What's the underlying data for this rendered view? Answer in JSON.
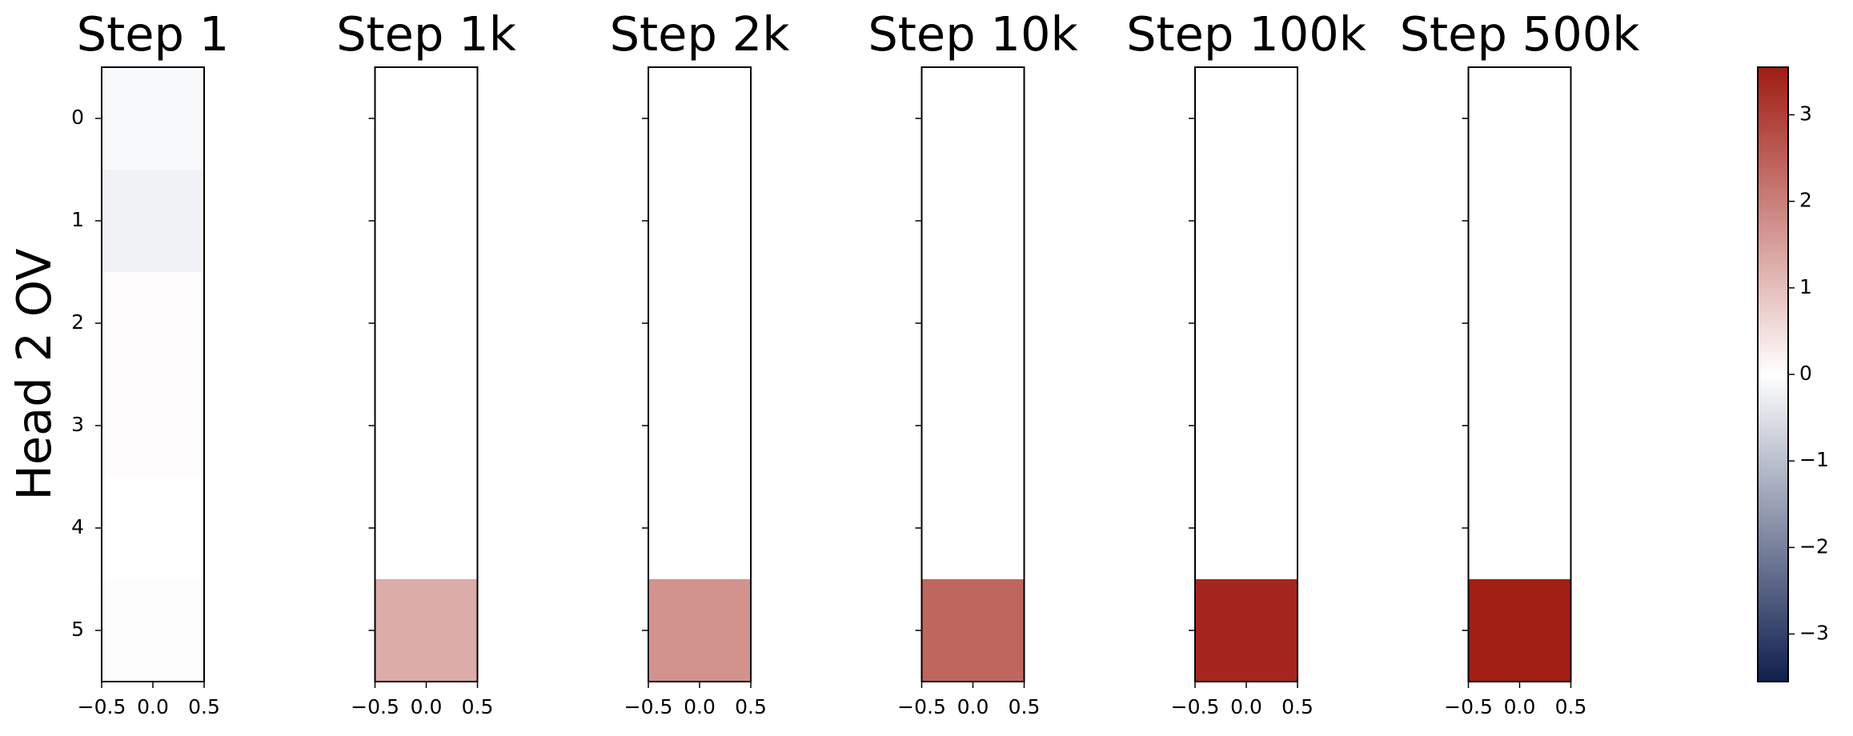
{
  "chart_data": {
    "type": "heatmap",
    "ylabel": "Head 2 OV",
    "xlim": [
      -0.5,
      0.5
    ],
    "ylim": [
      5.5,
      -0.5
    ],
    "xticks": [
      {
        "value": -0.5,
        "label": "−0.5"
      },
      {
        "value": 0,
        "label": "0.0"
      },
      0.5
    ],
    "yticks": [
      0,
      1,
      2,
      3,
      4,
      5
    ],
    "panels": [
      {
        "title": "Step 1",
        "values": [
          -0.1,
          -0.2,
          0.05,
          0.05,
          0,
          -0.03
        ]
      },
      {
        "title": "Step 1k",
        "values": [
          0,
          0,
          0,
          0,
          0,
          1.3
        ]
      },
      {
        "title": "Step 2k",
        "values": [
          0,
          0,
          0,
          0,
          0,
          1.7
        ]
      },
      {
        "title": "Step 10k",
        "values": [
          0,
          0,
          0,
          0,
          0,
          2.4
        ]
      },
      {
        "title": "Step 100k",
        "values": [
          0,
          -0.02,
          0,
          0,
          0,
          3.4
        ]
      },
      {
        "title": "Step 500k",
        "values": [
          0,
          0,
          0,
          0,
          0,
          3.5
        ]
      }
    ],
    "colorbar": {
      "lim": [
        -3.55,
        3.55
      ],
      "colors": [
        "#0f1f4e",
        "#ffffff",
        "#a01c12"
      ],
      "ticks": [
        {
          "value": -3,
          "label": "−3"
        },
        {
          "value": -2,
          "label": "−2"
        },
        {
          "value": -1,
          "label": "−1"
        },
        0,
        1,
        2,
        3
      ]
    }
  }
}
